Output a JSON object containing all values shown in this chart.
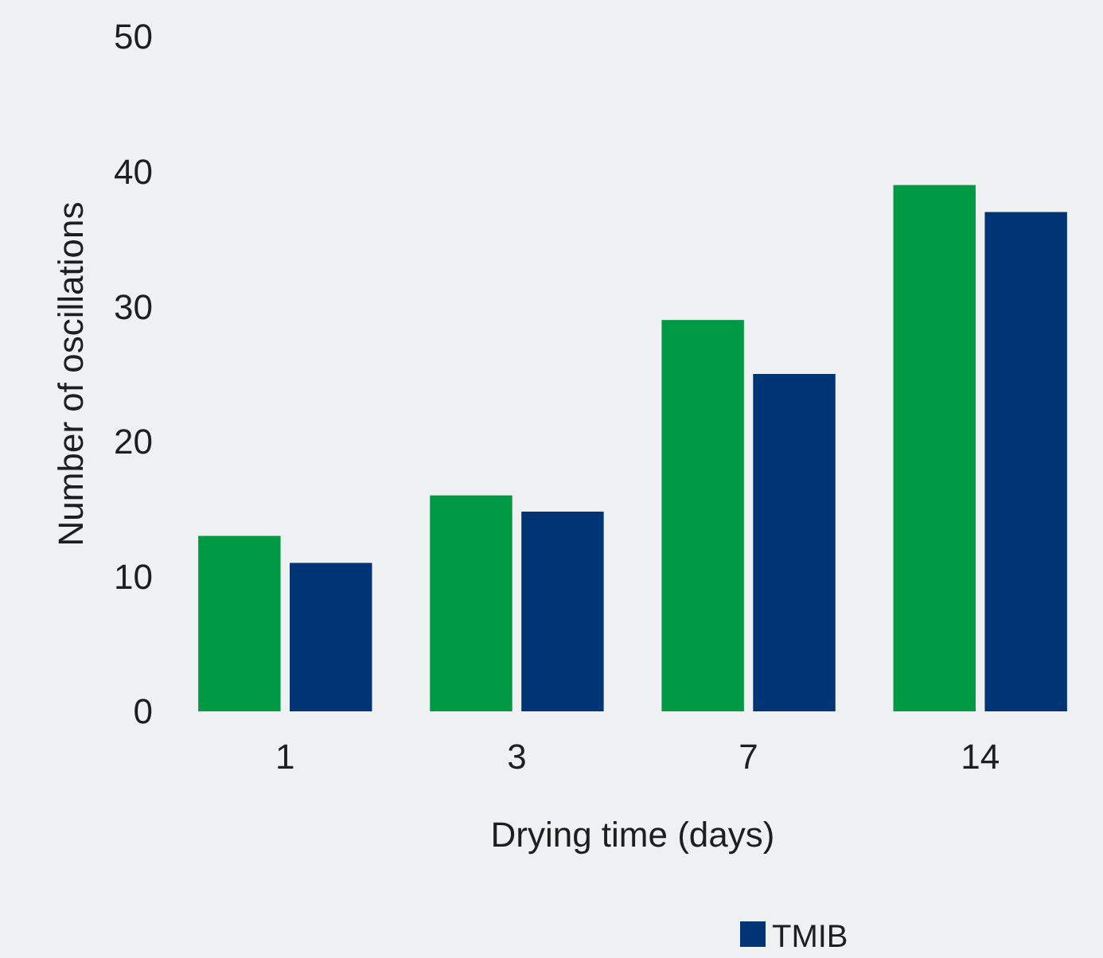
{
  "chart_data": {
    "type": "bar",
    "xlabel": "Drying time (days)",
    "ylabel": "Number of oscillations",
    "categories": [
      "1",
      "3",
      "7",
      "14"
    ],
    "series": [
      {
        "color": "#009a44",
        "values": [
          13,
          16,
          29,
          39
        ]
      },
      {
        "name": "TMIB",
        "color": "#003575",
        "values": [
          11,
          14.8,
          25,
          37
        ]
      }
    ],
    "ylim": [
      0,
      50
    ],
    "yticks": [
      0,
      10,
      20,
      30,
      40,
      50
    ],
    "legend": "bottom"
  }
}
